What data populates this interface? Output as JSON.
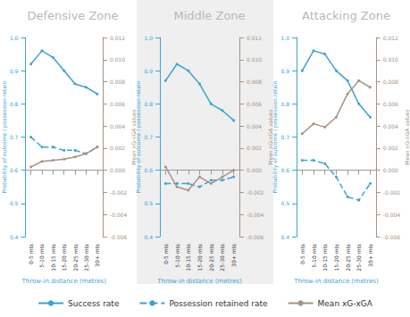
{
  "chart_data": [
    {
      "type": "line",
      "title": "Defensive Zone",
      "categories": [
        "0-5 mts",
        "5-10 mts",
        "10-15 mts",
        "15-20 mts",
        "20-25 mts",
        "25-30 mts",
        "30+ mts"
      ],
      "xlabel": "Throw-in distance (metres)",
      "ylabel": "Probability of outcome / possession retain",
      "y2label": "Mean xG-xGA values",
      "ylim": [
        0.4,
        1.0
      ],
      "yticks": [
        0.4,
        0.5,
        0.6,
        0.7,
        0.8,
        0.9,
        {
          "value": 1.0,
          "label": "1.0"
        }
      ],
      "y2lim": [
        -0.006,
        0.012
      ],
      "y2ticks": [
        -0.006,
        -0.004,
        -0.002,
        {
          "value": 0,
          "label": "0.000"
        },
        0.002,
        0.004,
        0.006,
        0.008,
        {
          "value": 0.01,
          "label": "0.010"
        },
        0.012
      ],
      "grid": false,
      "legend": "bottom",
      "series": [
        {
          "name": "Success rate",
          "color": "#3ba3d4",
          "line_style": "solid",
          "marker": "circle",
          "values": [
            0.92,
            0.96,
            0.94,
            0.9,
            0.86,
            0.85,
            0.83
          ]
        },
        {
          "name": "Possession retained rate",
          "color": "#3ba3d4",
          "line_style": "dashed",
          "marker": "circle",
          "values": [
            0.7,
            0.67,
            0.67,
            0.66,
            0.66,
            0.65,
            0.67
          ]
        },
        {
          "name": "Mean xG-xGA",
          "color": "#a89282",
          "line_style": "solid",
          "marker": "circle",
          "axis": "y2",
          "values": [
            0.0003,
            0.0008,
            0.0009,
            0.001,
            0.0012,
            0.0015,
            0.0021
          ]
        }
      ]
    },
    {
      "type": "line",
      "title": "Middle Zone",
      "categories": [
        "0-5 mts",
        "5-10 mts",
        "10-15 mts",
        "15-20 mts",
        "20-25 mts",
        "25-30 mts",
        "30+ mts"
      ],
      "xlabel": "Throw-in distance (metres)",
      "ylabel": "Probability of outcome / possession retain",
      "y2label": "Mean xG-xGA values",
      "ylim": [
        0.4,
        1.0
      ],
      "yticks": [
        0.4,
        0.5,
        0.6,
        0.7,
        0.8,
        0.9,
        {
          "value": 1.0,
          "label": "1.0"
        }
      ],
      "y2lim": [
        -0.006,
        0.012
      ],
      "y2ticks": [
        -0.006,
        -0.004,
        -0.002,
        {
          "value": 0,
          "label": "0.000"
        },
        0.002,
        0.004,
        0.006,
        0.008,
        {
          "value": 0.01,
          "label": "0.010"
        },
        0.012
      ],
      "grid": false,
      "legend": "bottom",
      "series": [
        {
          "name": "Success rate",
          "color": "#3ba3d4",
          "line_style": "solid",
          "marker": "circle",
          "values": [
            0.87,
            0.92,
            0.9,
            0.86,
            0.8,
            0.78,
            0.75
          ]
        },
        {
          "name": "Possession retained rate",
          "color": "#3ba3d4",
          "line_style": "dashed",
          "marker": "circle",
          "values": [
            0.56,
            0.56,
            0.56,
            0.55,
            0.57,
            0.57,
            0.58
          ]
        },
        {
          "name": "Mean xG-xGA",
          "color": "#a89282",
          "line_style": "solid",
          "marker": "circle",
          "axis": "y2",
          "values": [
            0.0003,
            -0.0015,
            -0.0018,
            -0.0006,
            -0.0012,
            -0.0006,
            0.0
          ]
        }
      ]
    },
    {
      "type": "line",
      "title": "Attacking Zone",
      "categories": [
        "0-5 mts",
        "5-10 mts",
        "10-15 mts",
        "15-20 mts",
        "20-25 mts",
        "25-30 mts",
        "30+ mts"
      ],
      "xlabel": "Throw-in distance (metres)",
      "ylabel": "Probability of outcome / possession retain",
      "y2label": "Mean xG-xGA values",
      "ylim": [
        0.4,
        1.0
      ],
      "yticks": [
        0.4,
        0.5,
        0.6,
        0.7,
        0.8,
        0.9,
        {
          "value": 1.0,
          "label": "1.0"
        }
      ],
      "y2lim": [
        -0.006,
        0.012
      ],
      "y2ticks": [
        -0.006,
        -0.004,
        -0.002,
        {
          "value": 0,
          "label": "0.000"
        },
        0.002,
        0.004,
        0.006,
        0.008,
        {
          "value": 0.01,
          "label": "0.010"
        },
        0.012
      ],
      "grid": false,
      "legend": "bottom",
      "series": [
        {
          "name": "Success rate",
          "color": "#3ba3d4",
          "line_style": "solid",
          "marker": "circle",
          "values": [
            0.9,
            0.96,
            0.95,
            0.9,
            0.87,
            0.8,
            0.76
          ]
        },
        {
          "name": "Possession retained rate",
          "color": "#3ba3d4",
          "line_style": "dashed",
          "marker": "circle",
          "values": [
            0.63,
            0.63,
            0.62,
            0.58,
            0.52,
            0.51,
            0.56
          ]
        },
        {
          "name": "Mean xG-xGA",
          "color": "#a89282",
          "line_style": "solid",
          "marker": "circle",
          "axis": "y2",
          "values": [
            0.0033,
            0.0042,
            0.0039,
            0.0048,
            0.0069,
            0.0081,
            0.0075
          ]
        }
      ]
    }
  ]
}
